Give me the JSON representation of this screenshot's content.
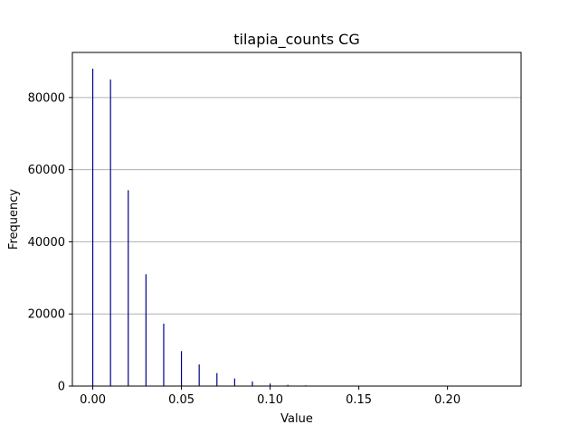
{
  "chart_data": {
    "type": "bar",
    "title": "tilapia_counts CG",
    "xlabel": "Value",
    "ylabel": "Frequency",
    "xlim": [
      -0.0115,
      0.2415
    ],
    "ylim": [
      0,
      92500
    ],
    "xticks": [
      0.0,
      0.05,
      0.1,
      0.15,
      0.2
    ],
    "xtick_labels": [
      "0.00",
      "0.05",
      "0.10",
      "0.15",
      "0.20"
    ],
    "yticks": [
      0,
      20000,
      40000,
      60000,
      80000
    ],
    "ytick_labels": [
      "0",
      "20000",
      "40000",
      "60000",
      "80000"
    ],
    "grid": "y",
    "bar_color": "#00008b",
    "x": [
      0.0,
      0.01,
      0.02,
      0.03,
      0.04,
      0.05,
      0.06,
      0.07,
      0.08,
      0.09,
      0.1,
      0.11,
      0.12,
      0.13
    ],
    "values": [
      88000,
      85000,
      54300,
      31000,
      17300,
      9700,
      6000,
      3600,
      2100,
      1300,
      700,
      350,
      200,
      80
    ]
  }
}
